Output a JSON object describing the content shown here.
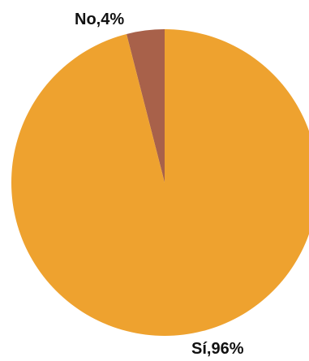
{
  "chart_data": {
    "type": "pie",
    "title": "",
    "slices": [
      {
        "label": "No,4%",
        "category": "No",
        "value": 4,
        "color": "#A8614A"
      },
      {
        "label": "Sí,96%",
        "category": "Sí",
        "value": 96,
        "color": "#EEA22F"
      }
    ]
  }
}
